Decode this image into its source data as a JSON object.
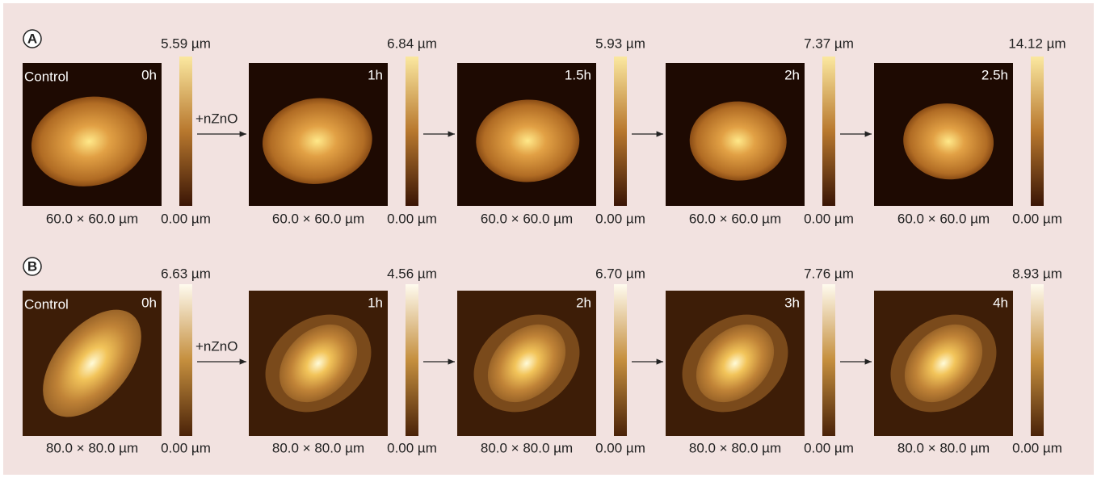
{
  "panels": [
    {
      "label": "A",
      "control": "Control",
      "treatment": "+nZnO",
      "images": [
        {
          "time": "0h",
          "size": "60.0 × 60.0 µm",
          "max": "5.59 µm",
          "min": "0.00 µm"
        },
        {
          "time": "1h",
          "size": "60.0 × 60.0 µm",
          "max": "6.84 µm",
          "min": "0.00 µm"
        },
        {
          "time": "1.5h",
          "size": "60.0 × 60.0 µm",
          "max": "5.93 µm",
          "min": "0.00 µm"
        },
        {
          "time": "2h",
          "size": "60.0 × 60.0 µm",
          "max": "7.37 µm",
          "min": "0.00 µm"
        },
        {
          "time": "2.5h",
          "size": "60.0 × 60.0 µm",
          "max": "14.12 µm",
          "min": "0.00 µm"
        }
      ]
    },
    {
      "label": "B",
      "control": "Control",
      "treatment": "+nZnO",
      "images": [
        {
          "time": "0h",
          "size": "80.0 × 80.0 µm",
          "max": "6.63 µm",
          "min": "0.00 µm"
        },
        {
          "time": "1h",
          "size": "80.0 × 80.0 µm",
          "max": "4.56 µm",
          "min": "0.00 µm"
        },
        {
          "time": "2h",
          "size": "80.0 × 80.0 µm",
          "max": "6.70 µm",
          "min": "0.00 µm"
        },
        {
          "time": "3h",
          "size": "80.0 × 80.0 µm",
          "max": "7.76 µm",
          "min": "0.00 µm"
        },
        {
          "time": "4h",
          "size": "80.0 × 80.0 µm",
          "max": "8.93 µm",
          "min": "0.00 µm"
        }
      ]
    }
  ]
}
